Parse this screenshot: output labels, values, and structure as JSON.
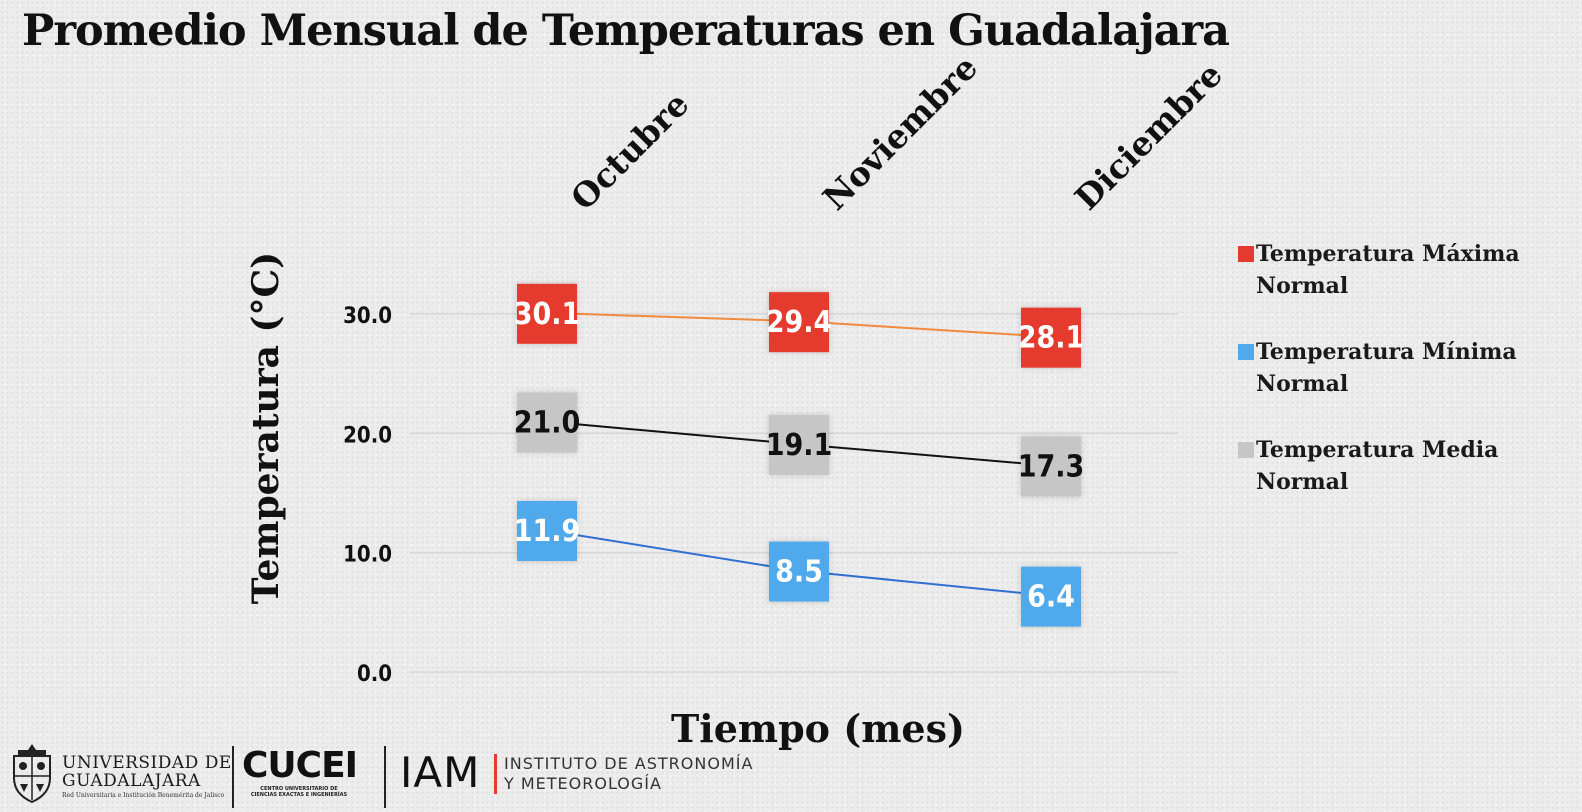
{
  "title": "Promedio Mensual de Temperaturas en Guadalajara",
  "chart_data": {
    "type": "line",
    "title": "Promedio Mensual de Temperaturas en Guadalajara",
    "xlabel": "Tiempo (mes)",
    "ylabel": "Temperatura  (°C)",
    "categories": [
      "Octubre",
      "Noviembre",
      "Diciembre"
    ],
    "y_ticks": [
      "0.0",
      "10.0",
      "20.0",
      "30.0"
    ],
    "ylim": [
      0,
      30
    ],
    "grid": true,
    "legend_position": "right",
    "series": [
      {
        "name": "Temperatura Máxima Normal",
        "values": [
          30.1,
          29.4,
          28.1
        ],
        "labels": [
          "30.1",
          "29.4",
          "28.1"
        ],
        "line_color": "#f08a3c",
        "label_color": "#e53a2f"
      },
      {
        "name": "Temperatura Mínima Normal",
        "values": [
          11.9,
          8.5,
          6.4
        ],
        "labels": [
          "11.9",
          "8.5",
          "6.4"
        ],
        "line_color": "#2f6fd1",
        "label_color": "#4fa9eb"
      },
      {
        "name": "Temperatura Media Normal",
        "values": [
          21.0,
          19.1,
          17.3
        ],
        "labels": [
          "21.0",
          "19.1",
          "17.3"
        ],
        "line_color": "#111111",
        "label_color": "#c6c6c6"
      }
    ]
  },
  "logos": {
    "udg_name_line1": "UNIVERSIDAD DE",
    "udg_name_line2": "GUADALAJARA",
    "udg_motto": "Red Universitaria e Institución Benemérita de Jalisco",
    "cucei": "CUCEI",
    "cucei_sub_line1": "CENTRO UNIVERSITARIO DE",
    "cucei_sub_line2": "CIENCIAS EXACTAS E INGENIERÍAS",
    "iam": "IAM",
    "iam_line1": "INSTITUTO DE ASTRONOMÍA",
    "iam_line2": "Y METEOROLOGÍA"
  }
}
